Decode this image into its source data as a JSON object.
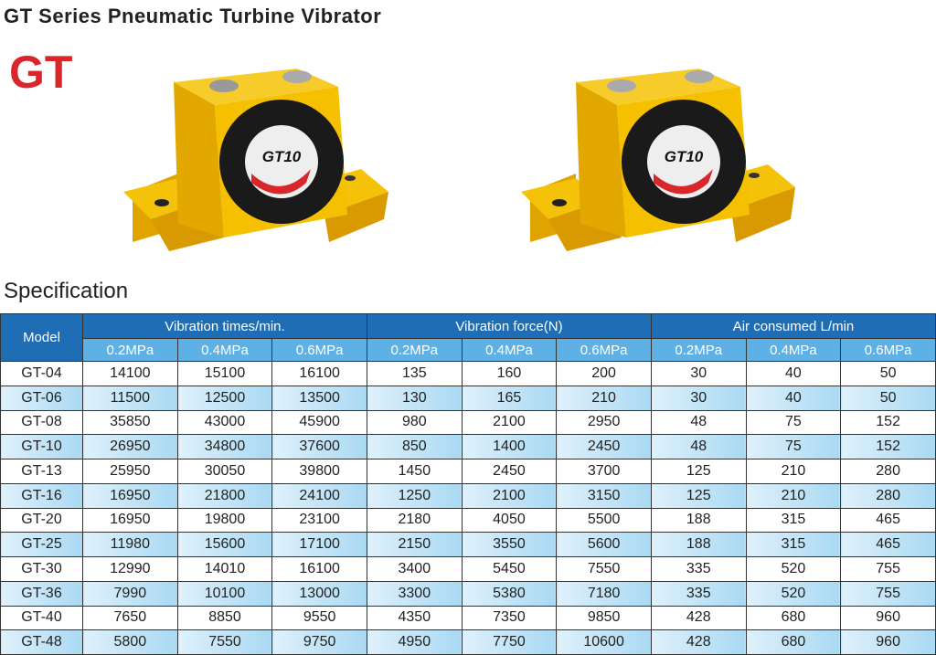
{
  "header": {
    "title": "GT Series Pneumatic Turbine Vibrator",
    "logo": "GT"
  },
  "images": [
    {
      "badge": "GT10"
    },
    {
      "badge": "GT10"
    }
  ],
  "section": "Specification",
  "table": {
    "model_header": "Model",
    "groups": [
      "Vibration times/min.",
      "Vibration force(N)",
      "Air consumed L/min"
    ],
    "subheaders": [
      "0.2MPa",
      "0.4MPa",
      "0.6MPa",
      "0.2MPa",
      "0.4MPa",
      "0.6MPa",
      "0.2MPa",
      "0.4MPa",
      "0.6MPa"
    ],
    "rows": [
      [
        "GT-04",
        14100,
        15100,
        16100,
        135,
        160,
        200,
        30,
        40,
        50
      ],
      [
        "GT-06",
        11500,
        12500,
        13500,
        130,
        165,
        210,
        30,
        40,
        50
      ],
      [
        "GT-08",
        35850,
        43000,
        45900,
        980,
        2100,
        2950,
        48,
        75,
        152
      ],
      [
        "GT-10",
        26950,
        34800,
        37600,
        850,
        1400,
        2450,
        48,
        75,
        152
      ],
      [
        "GT-13",
        25950,
        30050,
        39800,
        1450,
        2450,
        3700,
        125,
        210,
        280
      ],
      [
        "GT-16",
        16950,
        21800,
        24100,
        1250,
        2100,
        3150,
        125,
        210,
        280
      ],
      [
        "GT-20",
        16950,
        19800,
        23100,
        2180,
        4050,
        5500,
        188,
        315,
        465
      ],
      [
        "GT-25",
        11980,
        15600,
        17100,
        2150,
        3550,
        5600,
        188,
        315,
        465
      ],
      [
        "GT-30",
        12990,
        14010,
        16100,
        3400,
        5450,
        7550,
        335,
        520,
        755
      ],
      [
        "GT-36",
        7990,
        10100,
        13000,
        3300,
        5380,
        7180,
        335,
        520,
        755
      ],
      [
        "GT-40",
        7650,
        8850,
        9550,
        4350,
        7350,
        9850,
        428,
        680,
        960
      ],
      [
        "GT-48",
        5800,
        7550,
        9750,
        4950,
        7750,
        10600,
        428,
        680,
        960
      ]
    ]
  }
}
